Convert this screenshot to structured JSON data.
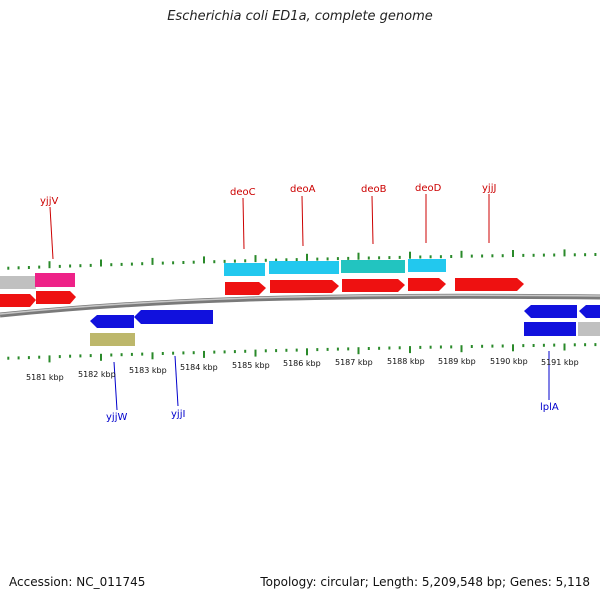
{
  "title": "Escherichia coli ED1a, complete genome",
  "footer": {
    "accession": "Accession: NC_011745",
    "stats": "Topology: circular; Length: 5,209,548 bp; Genes: 5,118"
  },
  "colors": {
    "background": "#ffffff",
    "genome_line": "#8a8a8a",
    "tick": "#2a8a2a",
    "upper_label": "#cc0000",
    "lower_label": "#0000cc",
    "cds_forward": "#ee1111",
    "cds_reverse": "#1111dd",
    "cyan_feature": "#22c8ee",
    "teal_feature": "#22c4c0",
    "magenta_feature": "#ee2288",
    "grey_feature": "#c0c0c0",
    "olive_feature": "#bdb76b"
  },
  "kbp_labels": [
    "5181 kbp",
    "5182 kbp",
    "5183 kbp",
    "5184 kbp",
    "5185 kbp",
    "5186 kbp",
    "5187 kbp",
    "5188 kbp",
    "5189 kbp",
    "5190 kbp",
    "5191 kbp"
  ],
  "upper_gene_labels": [
    "yjjV",
    "deoC",
    "deoA",
    "deoB",
    "deoD",
    "yjjJ"
  ],
  "lower_gene_labels": [
    "yjjW",
    "yjjI",
    "lplA"
  ],
  "icons": [
    "arrow-feature"
  ]
}
